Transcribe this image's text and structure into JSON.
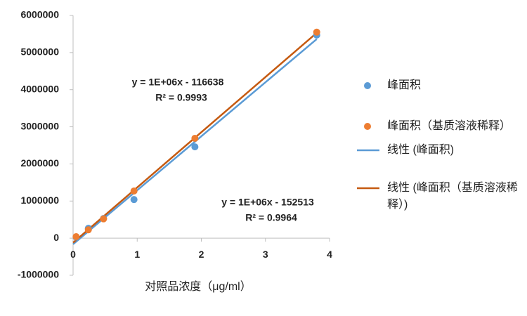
{
  "chart_data": {
    "type": "scatter",
    "x": [
      0.0475,
      0.238,
      0.475,
      0.95,
      1.9,
      3.8
    ],
    "series": [
      {
        "name": "峰面积",
        "color": "#5b9bd5",
        "values": [
          30000,
          265000,
          530000,
          1040000,
          2460000,
          5470000
        ],
        "trendline": {
          "name": "线性 (峰面积)",
          "color": "#5b9bd5"
        }
      },
      {
        "name": "峰面积（基质溶液稀释）",
        "color": "#ed7d31",
        "values": [
          40000,
          225000,
          520000,
          1270000,
          2690000,
          5550000
        ],
        "trendline": {
          "name": "线性 (峰面积（基质溶液稀释）)",
          "color": "#c55a11"
        }
      }
    ],
    "annotations": [
      [
        "y = 1E+06x - 116638",
        "R² = 0.9993"
      ],
      [
        "y = 1E+06x - 152513",
        "R² = 0.9964"
      ]
    ],
    "xlabel": "对照品浓度（μg/ml）",
    "xlim": [
      0,
      4
    ],
    "xticks": [
      0,
      1,
      2,
      3,
      4
    ],
    "ylim": [
      -1000000,
      6000000
    ],
    "yticks": [
      -1000000,
      0,
      1000000,
      2000000,
      3000000,
      4000000,
      5000000,
      6000000
    ],
    "grid": false,
    "legend": "right"
  }
}
